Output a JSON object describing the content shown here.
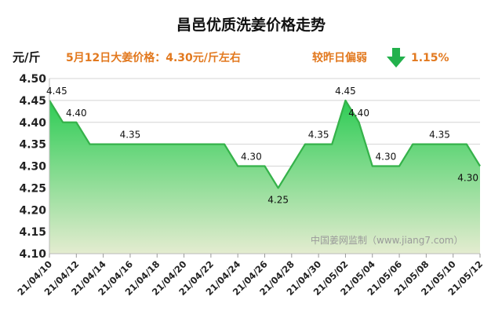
{
  "chart_data": {
    "type": "area",
    "title": "昌邑优质洗姜价格走势",
    "ylabel": "元/斤",
    "ylim": [
      4.1,
      4.5
    ],
    "yticks": [
      "4.50",
      "4.45",
      "4.40",
      "4.35",
      "4.30",
      "4.25",
      "4.20",
      "4.15",
      "4.10"
    ],
    "xticks": [
      "21/04/10",
      "21/04/12",
      "21/04/14",
      "21/04/16",
      "21/04/18",
      "21/04/20",
      "21/04/22",
      "21/04/24",
      "21/04/26",
      "21/04/28",
      "21/04/30",
      "21/05/02",
      "21/05/04",
      "21/05/06",
      "21/05/08",
      "21/05/10",
      "21/05/12"
    ],
    "x": [
      "21/04/10",
      "21/04/11",
      "21/04/12",
      "21/04/13",
      "21/04/14",
      "21/04/15",
      "21/04/16",
      "21/04/17",
      "21/04/18",
      "21/04/19",
      "21/04/20",
      "21/04/21",
      "21/04/22",
      "21/04/23",
      "21/04/24",
      "21/04/25",
      "21/04/26",
      "21/04/27",
      "21/04/28",
      "21/04/29",
      "21/04/30",
      "21/05/01",
      "21/05/02",
      "21/05/03",
      "21/05/04",
      "21/05/05",
      "21/05/06",
      "21/05/07",
      "21/05/08",
      "21/05/09",
      "21/05/10",
      "21/05/11",
      "21/05/12"
    ],
    "values": [
      4.45,
      4.4,
      4.4,
      4.35,
      4.35,
      4.35,
      4.35,
      4.35,
      4.35,
      4.35,
      4.35,
      4.35,
      4.35,
      4.35,
      4.3,
      4.3,
      4.3,
      4.25,
      4.3,
      4.35,
      4.35,
      4.35,
      4.45,
      4.4,
      4.3,
      4.3,
      4.3,
      4.35,
      4.35,
      4.35,
      4.35,
      4.35,
      4.3
    ],
    "data_labels": [
      {
        "x": "21/04/10",
        "text": "4.45"
      },
      {
        "x": "21/04/12",
        "text": "4.40"
      },
      {
        "x": "21/04/16",
        "text": "4.35"
      },
      {
        "x": "21/04/25",
        "text": "4.30"
      },
      {
        "x": "21/04/27",
        "text": "4.25"
      },
      {
        "x": "21/04/30",
        "text": "4.35"
      },
      {
        "x": "21/05/02",
        "text": "4.45"
      },
      {
        "x": "21/05/03",
        "text": "4.40"
      },
      {
        "x": "21/05/05",
        "text": "4.30"
      },
      {
        "x": "21/05/09",
        "text": "4.35"
      },
      {
        "x": "21/05/12",
        "text": "4.30"
      }
    ],
    "grid": true,
    "colors": {
      "line": "#35b24a",
      "fill_top": "#2ecc55",
      "fill_bottom": "#e4ecd0"
    }
  },
  "note_price": "5月12日大姜价格：4.30元/斤左右",
  "note_compare": "较昨日偏弱",
  "note_percent": "1.15%",
  "trend_icon": "arrow-down-icon",
  "watermark": "中国姜网监制（www.jiang7.com）"
}
